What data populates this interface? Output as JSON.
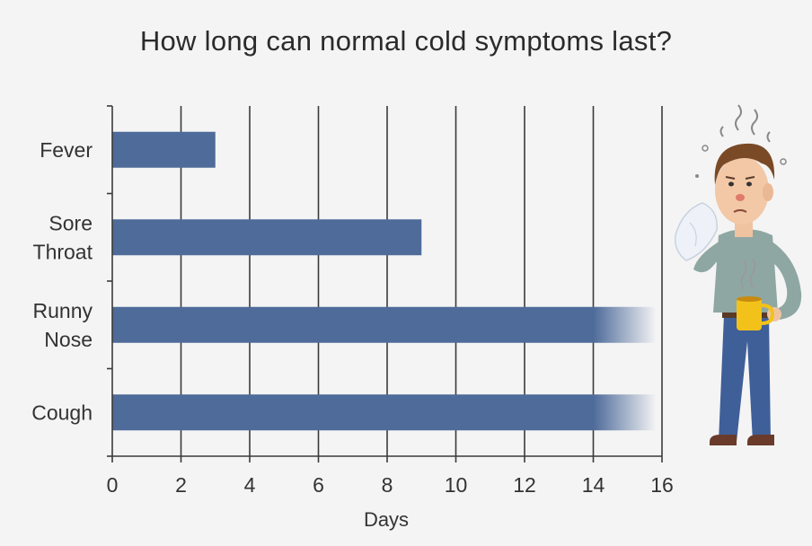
{
  "chart_data": {
    "type": "bar",
    "orientation": "horizontal",
    "title": "How long can normal cold symptoms last?",
    "xlabel": "Days",
    "ylabel": "",
    "categories": [
      [
        "Fever"
      ],
      [
        "Sore",
        "Throat"
      ],
      [
        "Runny",
        "Nose"
      ],
      [
        "Cough"
      ]
    ],
    "values": [
      3,
      9,
      14,
      14
    ],
    "open_ended": [
      false,
      false,
      true,
      true
    ],
    "xlim": [
      0,
      16
    ],
    "xticks": [
      0,
      2,
      4,
      6,
      8,
      10,
      12,
      14,
      16
    ],
    "grid": "vertical",
    "bar_color": "#4e6b9a"
  },
  "illustration": {
    "icon": "sick-man-with-tissue-and-mug-icon"
  }
}
